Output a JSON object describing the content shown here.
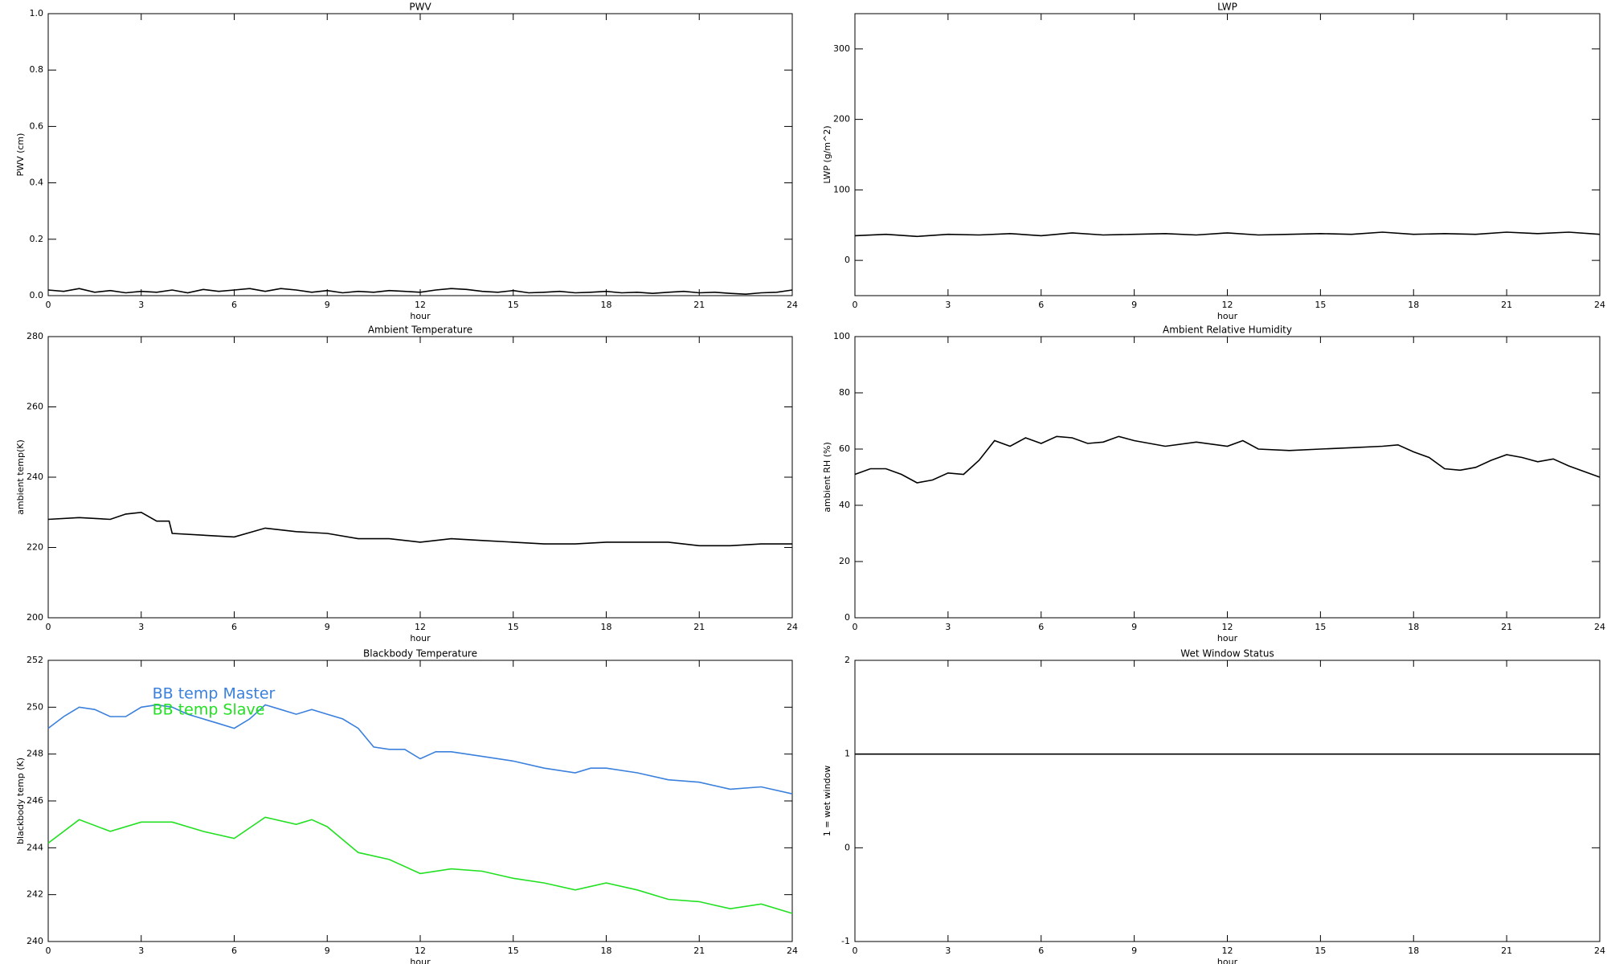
{
  "chart_data": [
    {
      "type": "line",
      "title": "PWV",
      "xlabel": "hour",
      "ylabel": "PWV (cm)",
      "xlim": [
        0,
        24
      ],
      "xticks": [
        0,
        3,
        6,
        9,
        12,
        15,
        18,
        21,
        24
      ],
      "ylim": [
        0,
        1
      ],
      "yticks": [
        {
          "value": 0,
          "label": "0.0"
        },
        0.2,
        0.4,
        0.6,
        0.8,
        {
          "value": 1,
          "label": "1.0"
        }
      ],
      "series": [
        {
          "name": "PWV",
          "color": "#000000",
          "x": [
            0,
            0.5,
            1,
            1.5,
            2,
            2.5,
            3,
            3.5,
            4,
            4.5,
            5,
            5.5,
            6,
            6.5,
            7,
            7.5,
            8,
            8.5,
            9,
            9.5,
            10,
            10.5,
            11,
            11.5,
            12,
            12.5,
            13,
            13.5,
            14,
            14.5,
            15,
            15.5,
            16,
            16.5,
            17,
            17.5,
            18,
            18.5,
            19,
            19.5,
            20,
            20.5,
            21,
            21.5,
            22,
            22.5,
            23,
            23.5,
            24
          ],
          "values": [
            0.02,
            0.015,
            0.025,
            0.012,
            0.018,
            0.01,
            0.015,
            0.012,
            0.02,
            0.01,
            0.022,
            0.015,
            0.02,
            0.025,
            0.015,
            0.025,
            0.02,
            0.012,
            0.018,
            0.01,
            0.015,
            0.012,
            0.018,
            0.015,
            0.012,
            0.02,
            0.025,
            0.022,
            0.015,
            0.012,
            0.018,
            0.01,
            0.012,
            0.015,
            0.01,
            0.012,
            0.015,
            0.01,
            0.012,
            0.008,
            0.012,
            0.015,
            0.01,
            0.012,
            0.008,
            0.005,
            0.01,
            0.012,
            0.02
          ]
        }
      ]
    },
    {
      "type": "line",
      "title": "LWP",
      "xlabel": "hour",
      "ylabel": "LWP (g/m^2)",
      "xlim": [
        0,
        24
      ],
      "xticks": [
        0,
        3,
        6,
        9,
        12,
        15,
        18,
        21,
        24
      ],
      "ylim": [
        -50,
        350
      ],
      "yticks": [
        0,
        100,
        200,
        300
      ],
      "series": [
        {
          "name": "LWP",
          "color": "#000000",
          "x": [
            0,
            1,
            2,
            3,
            4,
            5,
            6,
            7,
            8,
            9,
            10,
            11,
            12,
            13,
            14,
            15,
            16,
            17,
            18,
            19,
            20,
            21,
            22,
            23,
            24
          ],
          "values": [
            35,
            37,
            34,
            37,
            36,
            38,
            35,
            39,
            36,
            37,
            38,
            36,
            39,
            36,
            37,
            38,
            37,
            40,
            37,
            38,
            37,
            40,
            38,
            40,
            37
          ]
        }
      ]
    },
    {
      "type": "line",
      "title": "Ambient Temperature",
      "xlabel": "hour",
      "ylabel": "ambient temp(K)",
      "xlim": [
        0,
        24
      ],
      "xticks": [
        0,
        3,
        6,
        9,
        12,
        15,
        18,
        21,
        24
      ],
      "ylim": [
        200,
        280
      ],
      "yticks": [
        200,
        220,
        240,
        260,
        280
      ],
      "series": [
        {
          "name": "ambient temp",
          "color": "#000000",
          "x": [
            0,
            1,
            2,
            2.5,
            3,
            3.5,
            3.9,
            4,
            5,
            6,
            7,
            8,
            9,
            10,
            11,
            12,
            13,
            14,
            15,
            16,
            17,
            18,
            19,
            20,
            21,
            22,
            23,
            24
          ],
          "values": [
            228,
            228.5,
            228,
            229.5,
            230,
            227.5,
            227.5,
            224,
            223.5,
            223,
            225.5,
            224.5,
            224,
            222.5,
            222.5,
            221.5,
            222.5,
            222,
            221.5,
            221,
            221,
            221.5,
            221.5,
            221.5,
            220.5,
            220.5,
            221,
            221
          ]
        }
      ]
    },
    {
      "type": "line",
      "title": "Ambient Relative Humidity",
      "xlabel": "hour",
      "ylabel": "ambient RH (%)",
      "xlim": [
        0,
        24
      ],
      "xticks": [
        0,
        3,
        6,
        9,
        12,
        15,
        18,
        21,
        24
      ],
      "ylim": [
        0,
        100
      ],
      "yticks": [
        0,
        20,
        40,
        60,
        80,
        100
      ],
      "series": [
        {
          "name": "ambient RH",
          "color": "#000000",
          "x": [
            0,
            0.5,
            1,
            1.5,
            2,
            2.5,
            3,
            3.5,
            4,
            4.5,
            5,
            5.5,
            6,
            6.5,
            7,
            7.5,
            8,
            8.5,
            9,
            10,
            11,
            12,
            12.5,
            13,
            14,
            15,
            16,
            17,
            17.5,
            18,
            18.5,
            19,
            19.5,
            20,
            20.5,
            21,
            21.5,
            22,
            22.5,
            23,
            24
          ],
          "values": [
            51,
            53,
            53,
            51,
            48,
            49,
            51.5,
            51,
            56,
            63,
            61,
            64,
            62,
            64.5,
            64,
            62,
            62.5,
            64.5,
            63,
            61,
            62.5,
            61,
            63,
            60,
            59.5,
            60,
            60.5,
            61,
            61.5,
            59,
            57,
            53,
            52.5,
            53.5,
            56,
            58,
            57,
            55.5,
            56.5,
            54,
            50
          ]
        }
      ]
    },
    {
      "type": "line",
      "title": "Blackbody Temperature",
      "xlabel": "hour",
      "ylabel": "blackbody temp (K)",
      "xlim": [
        0,
        24
      ],
      "xticks": [
        0,
        3,
        6,
        9,
        12,
        15,
        18,
        21,
        24
      ],
      "ylim": [
        240,
        252
      ],
      "yticks": [
        240,
        242,
        244,
        246,
        248,
        250,
        252
      ],
      "legend": "upper left",
      "series": [
        {
          "name": "BB temp Master",
          "color": "#3a80dc",
          "x": [
            0,
            0.5,
            1,
            1.5,
            2,
            2.5,
            3,
            3.5,
            4,
            4.5,
            5,
            5.5,
            6,
            6.5,
            7,
            7.5,
            8,
            8.5,
            9,
            9.5,
            10,
            10.5,
            11,
            11.5,
            12,
            12.5,
            13,
            13.5,
            14,
            15,
            16,
            17,
            17.5,
            18,
            19,
            20,
            21,
            22,
            23,
            24
          ],
          "values": [
            249.1,
            249.6,
            250,
            249.9,
            249.6,
            249.6,
            250,
            250.1,
            250,
            249.7,
            249.5,
            249.3,
            249.1,
            249.5,
            250.1,
            249.9,
            249.7,
            249.9,
            249.7,
            249.5,
            249.1,
            248.3,
            248.2,
            248.2,
            247.8,
            248.1,
            248.1,
            248,
            247.9,
            247.7,
            247.4,
            247.2,
            247.4,
            247.4,
            247.2,
            246.9,
            246.8,
            246.5,
            246.6,
            246.3
          ]
        },
        {
          "name": "BB temp Slave",
          "color": "#22e022",
          "x": [
            0,
            1,
            2,
            3,
            4,
            5,
            6,
            7,
            8,
            8.5,
            9,
            10,
            11,
            12,
            13,
            14,
            15,
            16,
            17,
            18,
            19,
            20,
            21,
            22,
            23,
            24
          ],
          "values": [
            244.2,
            245.2,
            244.7,
            245.1,
            245.1,
            244.7,
            244.4,
            245.3,
            245,
            245.2,
            244.9,
            243.8,
            243.5,
            242.9,
            243.1,
            243,
            242.7,
            242.5,
            242.2,
            242.5,
            242.2,
            241.8,
            241.7,
            241.4,
            241.6,
            241.2
          ]
        }
      ]
    },
    {
      "type": "line",
      "title": "Wet Window Status",
      "xlabel": "hour",
      "ylabel": "1 = wet window",
      "xlim": [
        0,
        24
      ],
      "xticks": [
        0,
        3,
        6,
        9,
        12,
        15,
        18,
        21,
        24
      ],
      "ylim": [
        -1,
        2
      ],
      "yticks": [
        -1,
        0,
        1,
        2
      ],
      "series": [
        {
          "name": "wet window",
          "color": "#000000",
          "x": [
            0,
            24
          ],
          "values": [
            1,
            1
          ]
        }
      ]
    }
  ]
}
